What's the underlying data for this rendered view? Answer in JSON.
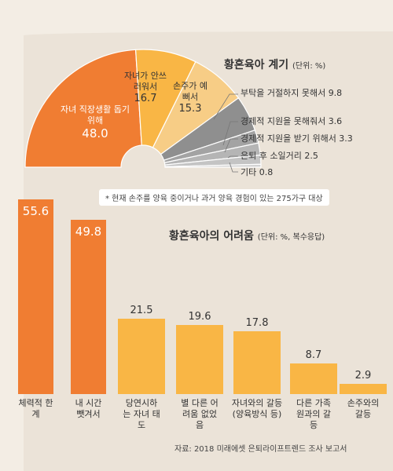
{
  "colors": {
    "orange": "#f07d32",
    "light_orange": "#f9b645",
    "yellow": "#f7cd86",
    "gray": "#9aa0a6"
  },
  "chart_data": [
    {
      "type": "pie",
      "title": "황혼육아 계기",
      "unit": "(단위: %)",
      "note": "* 현재 손주를 양육 중이거나 과거 양육 경험이 있는 275가구 대상",
      "slices": [
        {
          "label": "자녀 직장생활 돕기 위해",
          "value": 48.0
        },
        {
          "label": "자녀가 안쓰러워서",
          "value": 16.7
        },
        {
          "label": "손주가 예뻐서",
          "value": 15.3
        },
        {
          "label": "부탁을 거절하지 못해서",
          "value": 9.8
        },
        {
          "label": "경제적 지원을 못해줘서",
          "value": 3.6
        },
        {
          "label": "경제적 지원을 받기 위해서",
          "value": 3.3
        },
        {
          "label": "은퇴 후 소일거리",
          "value": 2.5
        },
        {
          "label": "기타",
          "value": 0.8
        }
      ]
    },
    {
      "type": "bar",
      "title": "황혼육아의 어려움",
      "unit": "(단위: %, 복수응답)",
      "categories": [
        "체력적 한계",
        "내 시간 뺏겨서",
        "당연시하는 자녀 태도",
        "별 다른 어려움 없었음",
        "자녀와의 갈등 (양육방식 등)",
        "다른 가족원과의 갈등",
        "손주와의 갈등"
      ],
      "values": [
        55.6,
        49.8,
        21.5,
        19.6,
        17.8,
        8.7,
        2.9
      ],
      "source": "자료: 2018 미래에셋 은퇴라이프트렌드 조사 보고서"
    }
  ]
}
